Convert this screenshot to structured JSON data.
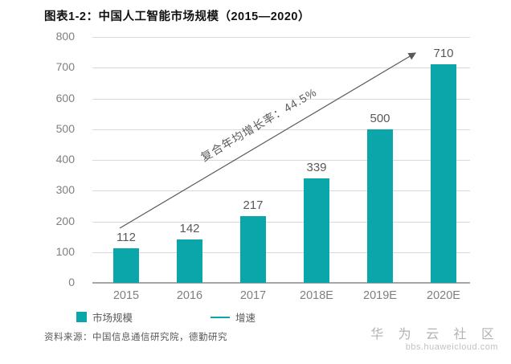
{
  "header": {
    "title": "图表1-2：中国人工智能市场规模（2015—2020）"
  },
  "chart_data": {
    "type": "bar",
    "title": "中国人工智能市场规模（2015—2020）",
    "categories": [
      "2015",
      "2016",
      "2017",
      "2018E",
      "2019E",
      "2020E"
    ],
    "values": [
      112,
      142,
      217,
      339,
      500,
      710
    ],
    "xlabel": "",
    "ylabel": "",
    "ylim": [
      0,
      800
    ],
    "ytick_step": 100,
    "grid": true,
    "legend_position": "bottom",
    "bar_color": "#0aa6a9",
    "annotation": "复合年均增长率：44.5%",
    "legend": [
      {
        "label": "市场规模",
        "marker": "square"
      },
      {
        "label": "增速",
        "marker": "line"
      }
    ]
  },
  "footer": {
    "source": "资料来源：中国信息通信研究院，德勤研究"
  },
  "watermark": {
    "name": "华 为 云 社 区",
    "url": "bbs.huaweicloud.com"
  },
  "colors": {
    "bar": "#0aa6a9",
    "gridline": "#d9d9d9",
    "axis_line": "#a6a6a6",
    "axis_text": "#7f7f7f",
    "value_text": "#595959",
    "arrow": "#595959"
  }
}
